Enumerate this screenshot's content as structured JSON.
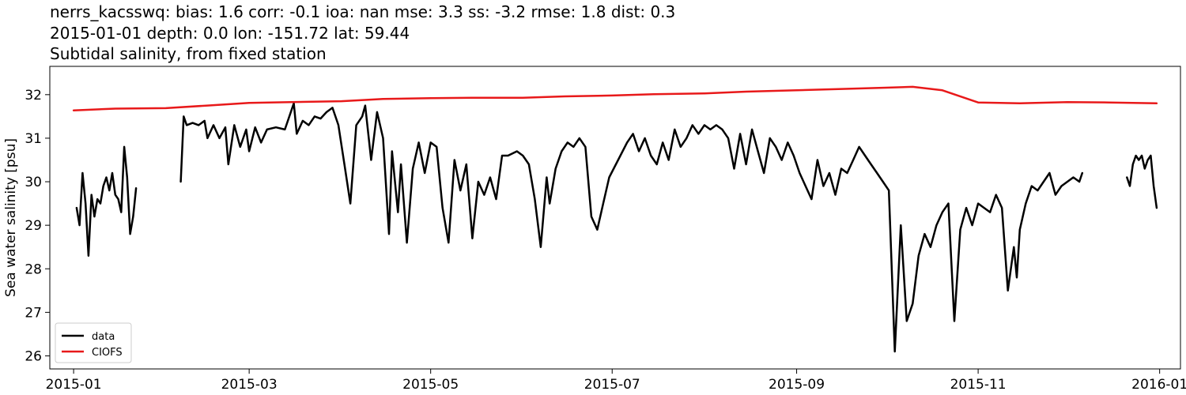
{
  "chart_data": {
    "type": "line",
    "title_lines": [
      "nerrs_kacsswq: bias: 1.6  corr: -0.1  ioa: nan  mse: 3.3  ss: -3.2  rmse: 1.8  dist: 0.3",
      "2015-01-01 depth: 0.0 lon: -151.72 lat: 59.44",
      "Subtidal salinity, from fixed station"
    ],
    "xlabel": "",
    "ylabel": "Sea water salinity [psu]",
    "xlim": [
      "2014-12-24",
      "2016-01-08"
    ],
    "ylim": [
      25.7,
      32.65
    ],
    "x_ticks": [
      "2015-01-01",
      "2015-03-01",
      "2015-05-01",
      "2015-07-01",
      "2015-09-01",
      "2015-11-01",
      "2016-01-01"
    ],
    "x_tick_labels": [
      "2015-01",
      "2015-03",
      "2015-05",
      "2015-07",
      "2015-09",
      "2015-11",
      "2016-01"
    ],
    "y_ticks": [
      26,
      27,
      28,
      29,
      30,
      31,
      32
    ],
    "grid": false,
    "legend": {
      "placement": "lower-left"
    },
    "series": [
      {
        "name": "data",
        "color": "#000000",
        "segments": [
          [
            [
              "2015-01-02",
              29.4
            ],
            [
              "2015-01-03",
              29.0
            ],
            [
              "2015-01-04",
              30.2
            ],
            [
              "2015-01-05",
              29.5
            ],
            [
              "2015-01-06",
              28.3
            ],
            [
              "2015-01-07",
              29.7
            ],
            [
              "2015-01-08",
              29.2
            ],
            [
              "2015-01-09",
              29.6
            ],
            [
              "2015-01-10",
              29.5
            ],
            [
              "2015-01-11",
              29.9
            ],
            [
              "2015-01-12",
              30.1
            ],
            [
              "2015-01-13",
              29.8
            ],
            [
              "2015-01-14",
              30.2
            ],
            [
              "2015-01-15",
              29.7
            ],
            [
              "2015-01-16",
              29.6
            ],
            [
              "2015-01-17",
              29.3
            ],
            [
              "2015-01-18",
              30.8
            ],
            [
              "2015-01-19",
              30.1
            ],
            [
              "2015-01-20",
              28.8
            ],
            [
              "2015-01-21",
              29.2
            ],
            [
              "2015-01-22",
              29.85
            ]
          ],
          [
            [
              "2015-02-06",
              30.0
            ],
            [
              "2015-02-07",
              31.5
            ],
            [
              "2015-02-08",
              31.3
            ],
            [
              "2015-02-10",
              31.35
            ],
            [
              "2015-02-12",
              31.3
            ],
            [
              "2015-02-14",
              31.4
            ],
            [
              "2015-02-15",
              31.0
            ],
            [
              "2015-02-17",
              31.3
            ],
            [
              "2015-02-19",
              31.0
            ],
            [
              "2015-02-21",
              31.25
            ],
            [
              "2015-02-22",
              30.4
            ],
            [
              "2015-02-24",
              31.3
            ],
            [
              "2015-02-26",
              30.8
            ],
            [
              "2015-02-28",
              31.2
            ],
            [
              "2015-03-01",
              30.7
            ],
            [
              "2015-03-03",
              31.25
            ],
            [
              "2015-03-05",
              30.9
            ],
            [
              "2015-03-07",
              31.2
            ],
            [
              "2015-03-10",
              31.25
            ],
            [
              "2015-03-13",
              31.2
            ],
            [
              "2015-03-16",
              31.8
            ],
            [
              "2015-03-17",
              31.1
            ],
            [
              "2015-03-19",
              31.4
            ],
            [
              "2015-03-21",
              31.3
            ],
            [
              "2015-03-23",
              31.5
            ],
            [
              "2015-03-25",
              31.45
            ],
            [
              "2015-03-27",
              31.6
            ],
            [
              "2015-03-29",
              31.7
            ],
            [
              "2015-03-31",
              31.3
            ],
            [
              "2015-04-02",
              30.4
            ],
            [
              "2015-04-04",
              29.5
            ],
            [
              "2015-04-06",
              31.3
            ],
            [
              "2015-04-08",
              31.5
            ],
            [
              "2015-04-09",
              31.75
            ],
            [
              "2015-04-11",
              30.5
            ],
            [
              "2015-04-13",
              31.6
            ],
            [
              "2015-04-15",
              31.0
            ],
            [
              "2015-04-17",
              28.8
            ],
            [
              "2015-04-18",
              30.7
            ],
            [
              "2015-04-20",
              29.3
            ],
            [
              "2015-04-21",
              30.4
            ],
            [
              "2015-04-23",
              28.6
            ],
            [
              "2015-04-25",
              30.3
            ],
            [
              "2015-04-27",
              30.9
            ],
            [
              "2015-04-29",
              30.2
            ],
            [
              "2015-05-01",
              30.9
            ],
            [
              "2015-05-03",
              30.8
            ],
            [
              "2015-05-05",
              29.4
            ],
            [
              "2015-05-07",
              28.6
            ],
            [
              "2015-05-09",
              30.5
            ],
            [
              "2015-05-11",
              29.8
            ],
            [
              "2015-05-13",
              30.4
            ],
            [
              "2015-05-15",
              28.7
            ],
            [
              "2015-05-17",
              30.0
            ],
            [
              "2015-05-19",
              29.7
            ],
            [
              "2015-05-21",
              30.1
            ],
            [
              "2015-05-23",
              29.6
            ],
            [
              "2015-05-25",
              30.6
            ],
            [
              "2015-05-27",
              30.6
            ],
            [
              "2015-05-30",
              30.7
            ],
            [
              "2015-06-01",
              30.6
            ],
            [
              "2015-06-03",
              30.4
            ],
            [
              "2015-06-05",
              29.6
            ],
            [
              "2015-06-07",
              28.5
            ],
            [
              "2015-06-09",
              30.1
            ],
            [
              "2015-06-10",
              29.5
            ],
            [
              "2015-06-12",
              30.3
            ],
            [
              "2015-06-14",
              30.7
            ],
            [
              "2015-06-16",
              30.9
            ],
            [
              "2015-06-18",
              30.8
            ],
            [
              "2015-06-20",
              31.0
            ],
            [
              "2015-06-22",
              30.8
            ],
            [
              "2015-06-24",
              29.2
            ],
            [
              "2015-06-26",
              28.9
            ],
            [
              "2015-06-28",
              29.5
            ],
            [
              "2015-06-30",
              30.1
            ],
            [
              "2015-07-03",
              30.5
            ],
            [
              "2015-07-06",
              30.9
            ],
            [
              "2015-07-08",
              31.1
            ],
            [
              "2015-07-10",
              30.7
            ],
            [
              "2015-07-12",
              31.0
            ],
            [
              "2015-07-14",
              30.6
            ],
            [
              "2015-07-16",
              30.4
            ],
            [
              "2015-07-18",
              30.9
            ],
            [
              "2015-07-20",
              30.5
            ],
            [
              "2015-07-22",
              31.2
            ],
            [
              "2015-07-24",
              30.8
            ],
            [
              "2015-07-26",
              31.0
            ],
            [
              "2015-07-28",
              31.3
            ],
            [
              "2015-07-30",
              31.1
            ],
            [
              "2015-08-01",
              31.3
            ],
            [
              "2015-08-03",
              31.2
            ],
            [
              "2015-08-05",
              31.3
            ],
            [
              "2015-08-07",
              31.2
            ],
            [
              "2015-08-09",
              31.0
            ],
            [
              "2015-08-11",
              30.3
            ],
            [
              "2015-08-13",
              31.1
            ],
            [
              "2015-08-15",
              30.4
            ],
            [
              "2015-08-17",
              31.2
            ],
            [
              "2015-08-19",
              30.7
            ],
            [
              "2015-08-21",
              30.2
            ],
            [
              "2015-08-23",
              31.0
            ],
            [
              "2015-08-25",
              30.8
            ],
            [
              "2015-08-27",
              30.5
            ],
            [
              "2015-08-29",
              30.9
            ],
            [
              "2015-08-31",
              30.6
            ],
            [
              "2015-09-02",
              30.2
            ],
            [
              "2015-09-04",
              29.9
            ],
            [
              "2015-09-06",
              29.6
            ],
            [
              "2015-09-08",
              30.5
            ],
            [
              "2015-09-10",
              29.9
            ],
            [
              "2015-09-12",
              30.2
            ],
            [
              "2015-09-14",
              29.7
            ],
            [
              "2015-09-16",
              30.3
            ],
            [
              "2015-09-18",
              30.2
            ],
            [
              "2015-09-20",
              30.5
            ],
            [
              "2015-09-22",
              30.8
            ],
            [
              "2015-09-24",
              30.6
            ],
            [
              "2015-09-26",
              30.4
            ],
            [
              "2015-09-28",
              30.2
            ],
            [
              "2015-09-30",
              30.0
            ],
            [
              "2015-10-02",
              29.8
            ],
            [
              "2015-10-04",
              26.1
            ],
            [
              "2015-10-06",
              29.0
            ],
            [
              "2015-10-08",
              26.8
            ],
            [
              "2015-10-10",
              27.2
            ],
            [
              "2015-10-12",
              28.3
            ],
            [
              "2015-10-14",
              28.8
            ],
            [
              "2015-10-16",
              28.5
            ],
            [
              "2015-10-18",
              29.0
            ],
            [
              "2015-10-20",
              29.3
            ],
            [
              "2015-10-22",
              29.5
            ],
            [
              "2015-10-24",
              26.8
            ],
            [
              "2015-10-26",
              28.9
            ],
            [
              "2015-10-28",
              29.4
            ],
            [
              "2015-10-30",
              29.0
            ],
            [
              "2015-11-01",
              29.5
            ],
            [
              "2015-11-03",
              29.4
            ],
            [
              "2015-11-05",
              29.3
            ],
            [
              "2015-11-07",
              29.7
            ],
            [
              "2015-11-09",
              29.4
            ],
            [
              "2015-11-11",
              27.5
            ],
            [
              "2015-11-13",
              28.5
            ],
            [
              "2015-11-14",
              27.8
            ],
            [
              "2015-11-15",
              28.9
            ],
            [
              "2015-11-17",
              29.5
            ],
            [
              "2015-11-19",
              29.9
            ],
            [
              "2015-11-21",
              29.8
            ],
            [
              "2015-11-23",
              30.0
            ],
            [
              "2015-11-25",
              30.2
            ],
            [
              "2015-11-27",
              29.7
            ],
            [
              "2015-11-29",
              29.9
            ],
            [
              "2015-12-01",
              30.0
            ],
            [
              "2015-12-03",
              30.1
            ],
            [
              "2015-12-05",
              30.0
            ],
            [
              "2015-12-06",
              30.2
            ]
          ],
          [
            [
              "2015-12-21",
              30.1
            ],
            [
              "2015-12-22",
              29.9
            ],
            [
              "2015-12-23",
              30.4
            ],
            [
              "2015-12-24",
              30.6
            ],
            [
              "2015-12-25",
              30.5
            ],
            [
              "2015-12-26",
              30.6
            ],
            [
              "2015-12-27",
              30.3
            ],
            [
              "2015-12-28",
              30.5
            ],
            [
              "2015-12-29",
              30.6
            ],
            [
              "2015-12-30",
              29.9
            ],
            [
              "2015-12-31",
              29.4
            ]
          ]
        ]
      },
      {
        "name": "CIOFS",
        "color": "#e8191a",
        "segments": [
          [
            [
              "2015-01-01",
              31.64
            ],
            [
              "2015-01-15",
              31.68
            ],
            [
              "2015-02-01",
              31.69
            ],
            [
              "2015-02-15",
              31.75
            ],
            [
              "2015-03-01",
              31.81
            ],
            [
              "2015-03-15",
              31.83
            ],
            [
              "2015-04-01",
              31.85
            ],
            [
              "2015-04-15",
              31.9
            ],
            [
              "2015-05-01",
              31.92
            ],
            [
              "2015-05-15",
              31.93
            ],
            [
              "2015-06-01",
              31.93
            ],
            [
              "2015-06-15",
              31.96
            ],
            [
              "2015-07-01",
              31.98
            ],
            [
              "2015-07-15",
              32.01
            ],
            [
              "2015-08-01",
              32.03
            ],
            [
              "2015-08-15",
              32.07
            ],
            [
              "2015-09-01",
              32.1
            ],
            [
              "2015-09-15",
              32.13
            ],
            [
              "2015-10-01",
              32.16
            ],
            [
              "2015-10-10",
              32.18
            ],
            [
              "2015-10-20",
              32.1
            ],
            [
              "2015-11-01",
              31.82
            ],
            [
              "2015-11-15",
              31.8
            ],
            [
              "2015-12-01",
              31.83
            ],
            [
              "2015-12-15",
              31.82
            ],
            [
              "2015-12-31",
              31.8
            ]
          ]
        ]
      }
    ]
  }
}
